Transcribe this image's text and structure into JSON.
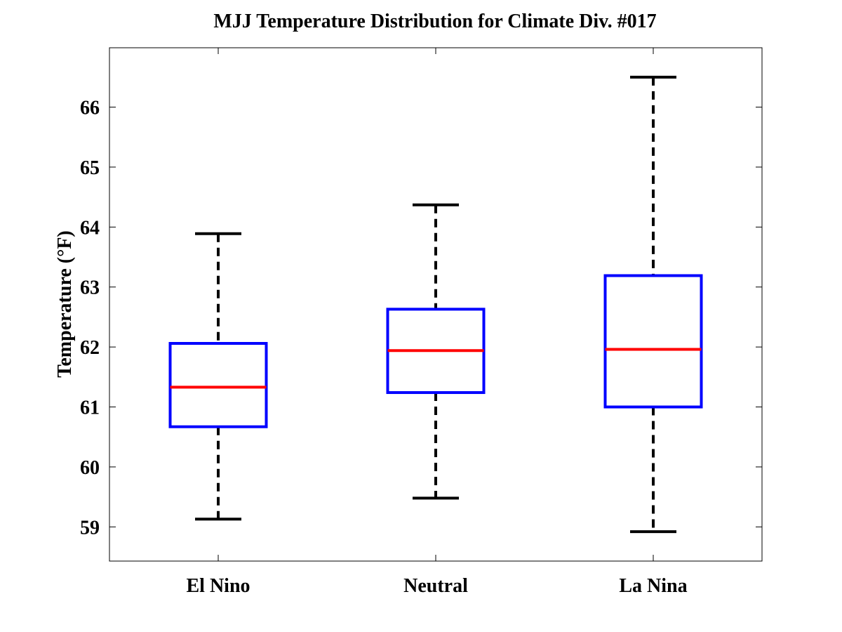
{
  "chart_data": {
    "type": "box",
    "title": "MJJ Temperature Distribution for Climate Div. #017",
    "xlabel": "",
    "ylabel": "Temperature (°F)",
    "ylim": [
      58.43,
      66.99
    ],
    "yticks": [
      "59",
      "60",
      "61",
      "62",
      "63",
      "64",
      "65",
      "66"
    ],
    "categories": [
      "El Nino",
      "Neutral",
      "La Nina"
    ],
    "boxes": [
      {
        "name": "El Nino",
        "whisker_low": 59.13,
        "q1": 60.67,
        "median": 61.33,
        "q3": 62.06,
        "whisker_high": 63.89
      },
      {
        "name": "Neutral",
        "whisker_low": 59.48,
        "q1": 61.24,
        "median": 61.94,
        "q3": 62.63,
        "whisker_high": 64.37
      },
      {
        "name": "La Nina",
        "whisker_low": 58.92,
        "q1": 61.0,
        "median": 61.96,
        "q3": 63.19,
        "whisker_high": 66.5
      }
    ],
    "colors": {
      "box": "#0000ff",
      "median": "#ff0000",
      "whisker": "#000000"
    }
  }
}
